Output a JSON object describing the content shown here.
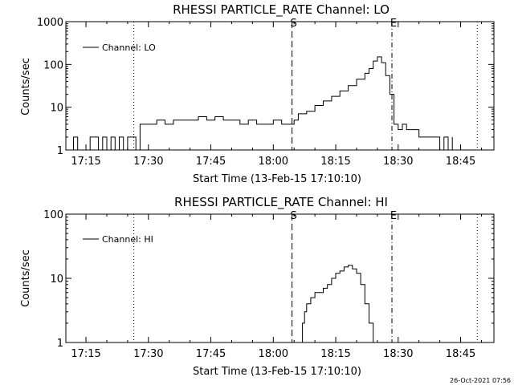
{
  "timestamp": "26-Oct-2021 07:56",
  "chart_data": [
    {
      "type": "line",
      "title": "RHESSI PARTICLE_RATE Channel: LO",
      "xlabel": "Start Time (13-Feb-15 17:10:10)",
      "ylabel": "Counts/sec",
      "yscale": "log",
      "ylim": [
        1,
        1000
      ],
      "xlim": [
        "17:10:10",
        "18:53:00"
      ],
      "xticks": [
        "17:15",
        "17:30",
        "17:45",
        "18:00",
        "18:15",
        "18:30",
        "18:45"
      ],
      "yticks": [
        "1",
        "10",
        "100",
        "1000"
      ],
      "legend": "top-left",
      "series": [
        {
          "name": "Channel: LO",
          "x": [
            "17:11:00",
            "17:12:00",
            "17:13:00",
            "17:15:00",
            "17:16:00",
            "17:18:00",
            "17:19:00",
            "17:20:00",
            "17:21:00",
            "17:22:00",
            "17:23:00",
            "17:24:00",
            "17:25:00",
            "17:26:00",
            "17:27:00",
            "17:28:00",
            "17:30:00",
            "17:32:00",
            "17:34:00",
            "17:36:00",
            "17:38:00",
            "17:40:00",
            "17:42:00",
            "17:44:00",
            "17:46:00",
            "17:48:00",
            "17:50:00",
            "17:52:00",
            "17:54:00",
            "17:56:00",
            "17:58:00",
            "18:00:00",
            "18:02:00",
            "18:04:00",
            "18:05:00",
            "18:06:00",
            "18:08:00",
            "18:10:00",
            "18:12:00",
            "18:14:00",
            "18:16:00",
            "18:18:00",
            "18:20:00",
            "18:22:00",
            "18:23:00",
            "18:24:00",
            "18:25:00",
            "18:26:00",
            "18:27:00",
            "18:28:00",
            "18:29:00",
            "18:30:00",
            "18:31:00",
            "18:32:00",
            "18:35:00",
            "18:38:00",
            "18:39:00",
            "18:40:00",
            "18:41:00",
            "18:42:00",
            "18:43:00"
          ],
          "values": [
            1,
            2,
            1,
            1,
            2,
            1,
            2,
            1,
            2,
            1,
            2,
            1,
            2,
            2,
            1,
            4,
            4,
            5,
            4,
            5,
            5,
            5,
            6,
            5,
            6,
            5,
            5,
            4,
            5,
            4,
            4,
            5,
            4,
            4,
            5,
            7,
            8,
            11,
            14,
            18,
            24,
            32,
            45,
            62,
            80,
            120,
            150,
            110,
            55,
            20,
            4,
            3,
            4,
            3,
            2,
            2,
            2,
            1,
            2,
            1,
            2
          ]
        }
      ],
      "markers": [
        {
          "time": "17:26:30",
          "style": "dotted",
          "label": ""
        },
        {
          "time": "18:04:30",
          "style": "dashed",
          "label": "S"
        },
        {
          "time": "18:28:30",
          "style": "dash-dot",
          "label": "E"
        },
        {
          "time": "18:49:00",
          "style": "dotted",
          "label": ""
        }
      ]
    },
    {
      "type": "line",
      "title": "RHESSI PARTICLE_RATE Channel: HI",
      "xlabel": "Start Time (13-Feb-15 17:10:10)",
      "ylabel": "Counts/sec",
      "yscale": "log",
      "ylim": [
        1,
        100
      ],
      "xlim": [
        "17:10:10",
        "18:53:00"
      ],
      "xticks": [
        "17:15",
        "17:30",
        "17:45",
        "18:00",
        "18:15",
        "18:30",
        "18:45"
      ],
      "yticks": [
        "1",
        "10",
        "100"
      ],
      "legend": "top-left",
      "series": [
        {
          "name": "Channel: HI",
          "x": [
            "18:06:30",
            "18:07:00",
            "18:07:30",
            "18:08:00",
            "18:09:00",
            "18:10:00",
            "18:11:00",
            "18:12:00",
            "18:13:00",
            "18:14:00",
            "18:15:00",
            "18:16:00",
            "18:17:00",
            "18:18:00",
            "18:19:00",
            "18:20:00",
            "18:21:00",
            "18:22:00",
            "18:23:00",
            "18:24:00"
          ],
          "values": [
            1,
            2,
            3,
            4,
            5,
            6,
            6,
            7,
            8,
            10,
            12,
            13,
            15,
            16,
            14,
            12,
            8,
            4,
            2,
            1
          ]
        }
      ],
      "markers": [
        {
          "time": "17:26:30",
          "style": "dotted",
          "label": ""
        },
        {
          "time": "18:04:30",
          "style": "dashed",
          "label": "S"
        },
        {
          "time": "18:28:30",
          "style": "dash-dot",
          "label": "E"
        },
        {
          "time": "18:49:00",
          "style": "dotted",
          "label": ""
        }
      ]
    }
  ]
}
